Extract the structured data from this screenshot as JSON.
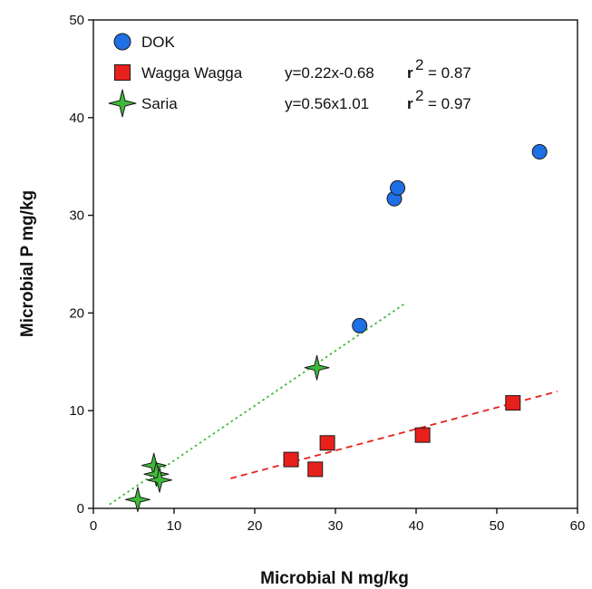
{
  "chart_data": {
    "type": "scatter",
    "xlabel": "Microbial N mg/kg",
    "ylabel": "Microbial P mg/kg",
    "xlim": [
      0,
      60
    ],
    "ylim": [
      0,
      50
    ],
    "xticks": [
      0,
      10,
      20,
      30,
      40,
      50,
      60
    ],
    "yticks": [
      0,
      10,
      20,
      30,
      40,
      50
    ],
    "grid": false,
    "legend_position": "top-left",
    "series": [
      {
        "name": "DOK",
        "marker": "circle",
        "color": "#1f6fe5",
        "points": [
          {
            "x": 33.0,
            "y": 18.7
          },
          {
            "x": 37.3,
            "y": 31.7
          },
          {
            "x": 37.7,
            "y": 32.8
          },
          {
            "x": 55.3,
            "y": 36.5
          }
        ]
      },
      {
        "name": "Wagga Wagga",
        "marker": "square",
        "color": "#e8201c",
        "equation": "y=0.22x-0.68",
        "r2_prefix": "r",
        "r2_sup": "2",
        "r2_value": "= 0.87",
        "fit": {
          "x": [
            17,
            57.5
          ],
          "y": [
            3.06,
            11.97
          ]
        },
        "points": [
          {
            "x": 24.5,
            "y": 5.0
          },
          {
            "x": 27.5,
            "y": 4.0
          },
          {
            "x": 29.0,
            "y": 6.7
          },
          {
            "x": 40.8,
            "y": 7.5
          },
          {
            "x": 52.0,
            "y": 10.8
          }
        ]
      },
      {
        "name": "Saria",
        "marker": "star",
        "color": "#3fb93a",
        "equation": "y=0.56x1.01",
        "r2_prefix": "r",
        "r2_sup": "2",
        "r2_value": "= 0.97",
        "fit": {
          "x": [
            2,
            38.5
          ],
          "y": [
            0.4,
            20.9
          ]
        },
        "points": [
          {
            "x": 5.5,
            "y": 0.9
          },
          {
            "x": 7.5,
            "y": 4.4
          },
          {
            "x": 7.8,
            "y": 3.5
          },
          {
            "x": 8.2,
            "y": 2.9
          },
          {
            "x": 27.7,
            "y": 14.4
          }
        ]
      }
    ]
  }
}
